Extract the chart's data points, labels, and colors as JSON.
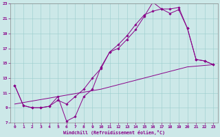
{
  "xlabel": "Windchill (Refroidissement éolien,°C)",
  "bg_color": "#cce8e8",
  "line_color": "#880088",
  "xlim": [
    -0.5,
    23.5
  ],
  "ylim": [
    7,
    23
  ],
  "xticks": [
    0,
    1,
    2,
    3,
    4,
    5,
    6,
    7,
    8,
    9,
    10,
    11,
    12,
    13,
    14,
    15,
    16,
    17,
    18,
    19,
    20,
    21,
    22,
    23
  ],
  "yticks": [
    7,
    9,
    11,
    13,
    15,
    17,
    19,
    21,
    23
  ],
  "series": [
    {
      "x": [
        0,
        5,
        10,
        15,
        20,
        23
      ],
      "y": [
        9.5,
        10.5,
        11.5,
        13.0,
        14.5,
        14.8
      ]
    },
    {
      "x": [
        0,
        1,
        2,
        3,
        4,
        5,
        6,
        7,
        8,
        9,
        10,
        11,
        12,
        13,
        14,
        15,
        16,
        17,
        18,
        19,
        20,
        21,
        22,
        23
      ],
      "y": [
        12.0,
        9.3,
        9.0,
        9.0,
        9.2,
        10.5,
        7.2,
        7.8,
        10.5,
        11.5,
        14.5,
        16.5,
        17.0,
        18.2,
        19.5,
        21.3,
        23.2,
        22.3,
        21.7,
        22.2,
        19.7,
        15.5,
        15.3,
        14.8
      ]
    },
    {
      "x": [
        0,
        1,
        2,
        3,
        4,
        5,
        6,
        7,
        8,
        9,
        10,
        11,
        12,
        13,
        14,
        15,
        16,
        17,
        18,
        19,
        20,
        21,
        22,
        23
      ],
      "y": [
        12.0,
        9.3,
        9.0,
        9.0,
        9.2,
        10.0,
        9.5,
        10.5,
        11.5,
        13.0,
        14.3,
        16.5,
        17.5,
        18.7,
        20.2,
        21.5,
        22.0,
        22.3,
        22.3,
        22.5,
        19.7,
        15.5,
        15.3,
        14.8
      ]
    }
  ]
}
